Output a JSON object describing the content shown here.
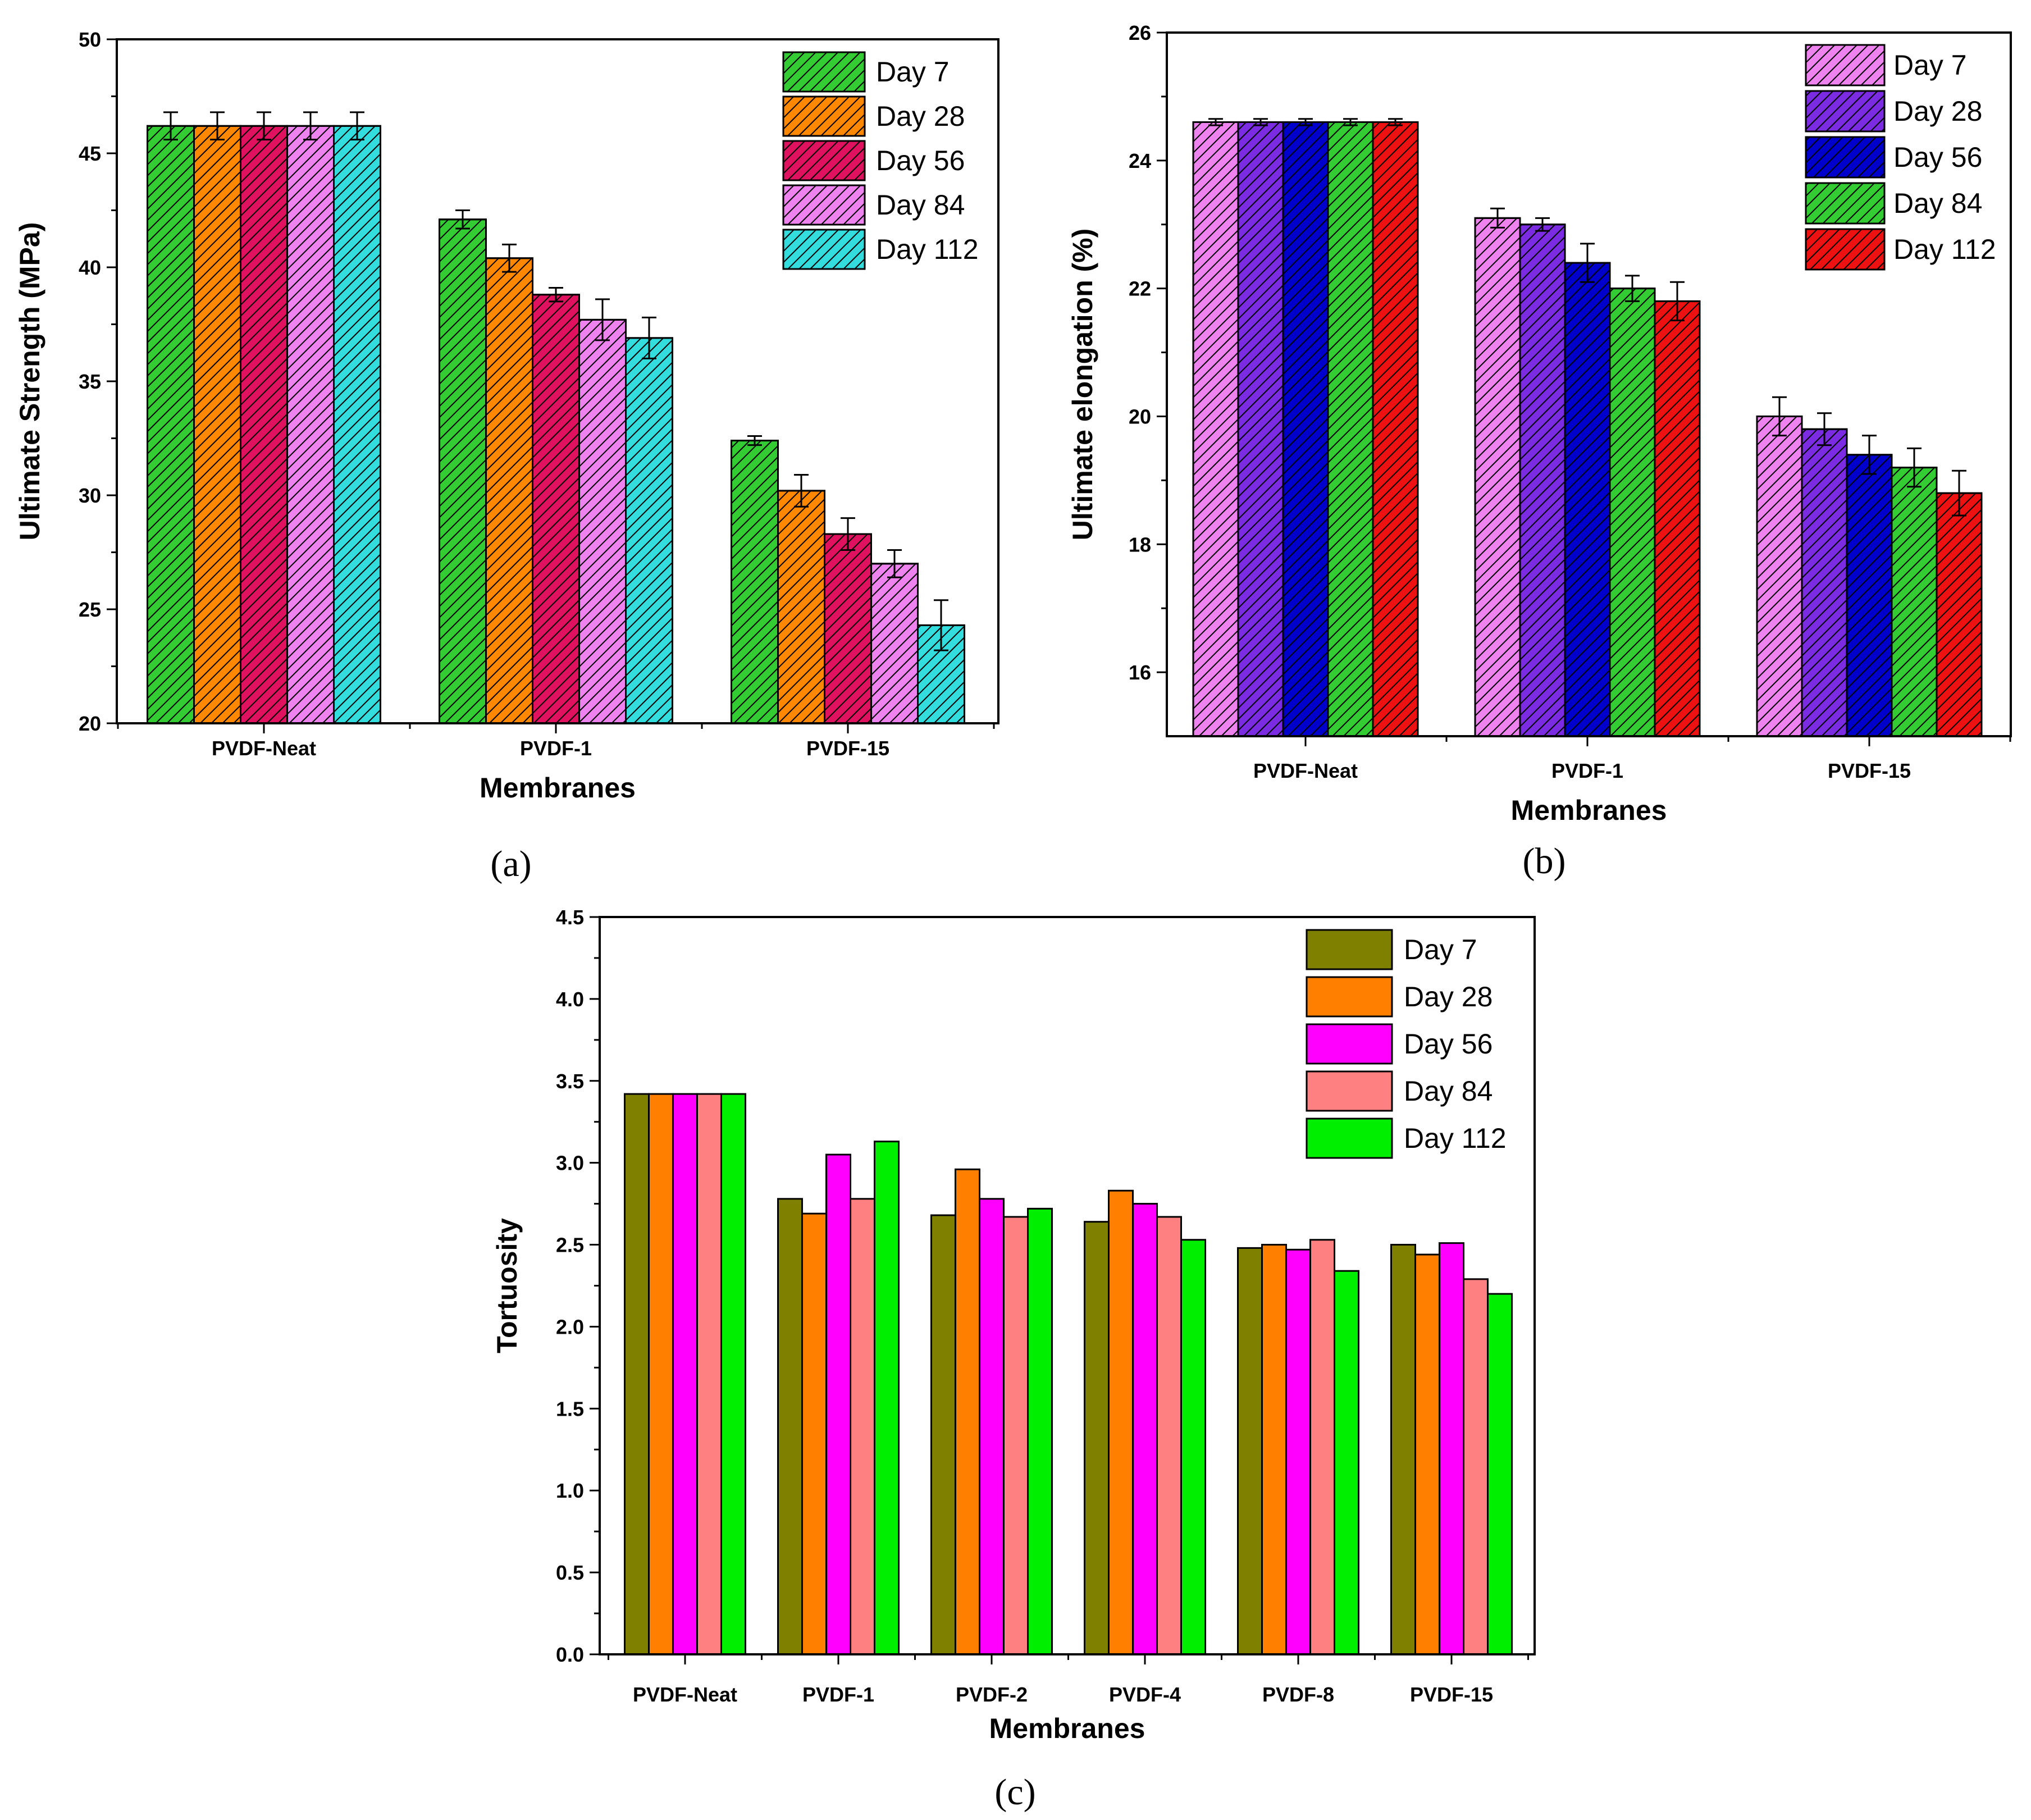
{
  "chart_data": [
    {
      "id": "a",
      "type": "bar",
      "panel_label": "(a)",
      "title": "",
      "xlabel": "Membranes",
      "ylabel": "Ultimate Strength (MPa)",
      "ylim": [
        20,
        50
      ],
      "yticks": [
        20,
        25,
        30,
        35,
        40,
        45,
        50
      ],
      "pattern": "hatched",
      "error_bars": true,
      "legend_position": "top-right",
      "categories": [
        "PVDF-Neat",
        "PVDF-1",
        "PVDF-15"
      ],
      "series": [
        {
          "name": "Day 7",
          "color": "#33cc33",
          "values": [
            46.2,
            42.1,
            32.4
          ],
          "errors": [
            0.6,
            0.4,
            0.2
          ]
        },
        {
          "name": "Day 28",
          "color": "#ff8800",
          "values": [
            46.2,
            40.4,
            30.2
          ],
          "errors": [
            0.6,
            0.6,
            0.7
          ]
        },
        {
          "name": "Day 56",
          "color": "#e0115f",
          "values": [
            46.2,
            38.8,
            28.3
          ],
          "errors": [
            0.6,
            0.3,
            0.7
          ]
        },
        {
          "name": "Day 84",
          "color": "#ee82ee",
          "values": [
            46.2,
            37.7,
            27.0
          ],
          "errors": [
            0.6,
            0.9,
            0.6
          ]
        },
        {
          "name": "Day 112",
          "color": "#33dddd",
          "values": [
            46.2,
            36.9,
            24.3
          ],
          "errors": [
            0.6,
            0.9,
            1.1
          ]
        }
      ]
    },
    {
      "id": "b",
      "type": "bar",
      "panel_label": "(b)",
      "title": "",
      "xlabel": "Membranes",
      "ylabel": "Ultimate elongation (%)",
      "ylim": [
        15,
        26
      ],
      "yticks": [
        16,
        18,
        20,
        22,
        24,
        26
      ],
      "pattern": "hatched",
      "error_bars": true,
      "legend_position": "top-right",
      "categories": [
        "PVDF-Neat",
        "PVDF-1",
        "PVDF-15"
      ],
      "series": [
        {
          "name": "Day 7",
          "color": "#ee82ee",
          "values": [
            24.6,
            23.1,
            20.0
          ],
          "errors": [
            0.05,
            0.15,
            0.3
          ]
        },
        {
          "name": "Day 28",
          "color": "#7b2be2",
          "values": [
            24.6,
            23.0,
            19.8
          ],
          "errors": [
            0.05,
            0.1,
            0.25
          ]
        },
        {
          "name": "Day 56",
          "color": "#0000cc",
          "values": [
            24.6,
            22.4,
            19.4
          ],
          "errors": [
            0.05,
            0.3,
            0.3
          ]
        },
        {
          "name": "Day 84",
          "color": "#33cc33",
          "values": [
            24.6,
            22.0,
            19.2
          ],
          "errors": [
            0.05,
            0.2,
            0.3
          ]
        },
        {
          "name": "Day 112",
          "color": "#ee1111",
          "values": [
            24.6,
            21.8,
            18.8
          ],
          "errors": [
            0.05,
            0.3,
            0.35
          ]
        }
      ]
    },
    {
      "id": "c",
      "type": "bar",
      "panel_label": "(c)",
      "title": "",
      "xlabel": "Membranes",
      "ylabel": "Tortuosity",
      "ylim": [
        0,
        4.5
      ],
      "yticks": [
        0.0,
        0.5,
        1.0,
        1.5,
        2.0,
        2.5,
        3.0,
        3.5,
        4.0,
        4.5
      ],
      "pattern": "solid",
      "error_bars": false,
      "legend_position": "top-right",
      "categories": [
        "PVDF-Neat",
        "PVDF-1",
        "PVDF-2",
        "PVDF-4",
        "PVDF-8",
        "PVDF-15"
      ],
      "series": [
        {
          "name": "Day 7",
          "color": "#808000",
          "values": [
            3.42,
            2.78,
            2.68,
            2.64,
            2.48,
            2.5
          ]
        },
        {
          "name": "Day 28",
          "color": "#ff8000",
          "values": [
            3.42,
            2.69,
            2.96,
            2.83,
            2.5,
            2.44
          ]
        },
        {
          "name": "Day 56",
          "color": "#ff00ff",
          "values": [
            3.42,
            3.05,
            2.78,
            2.75,
            2.47,
            2.51
          ]
        },
        {
          "name": "Day 84",
          "color": "#ff8080",
          "values": [
            3.42,
            2.78,
            2.67,
            2.67,
            2.53,
            2.29
          ]
        },
        {
          "name": "Day 112",
          "color": "#00ee00",
          "values": [
            3.42,
            3.13,
            2.72,
            2.53,
            2.34,
            2.2
          ]
        }
      ]
    }
  ]
}
